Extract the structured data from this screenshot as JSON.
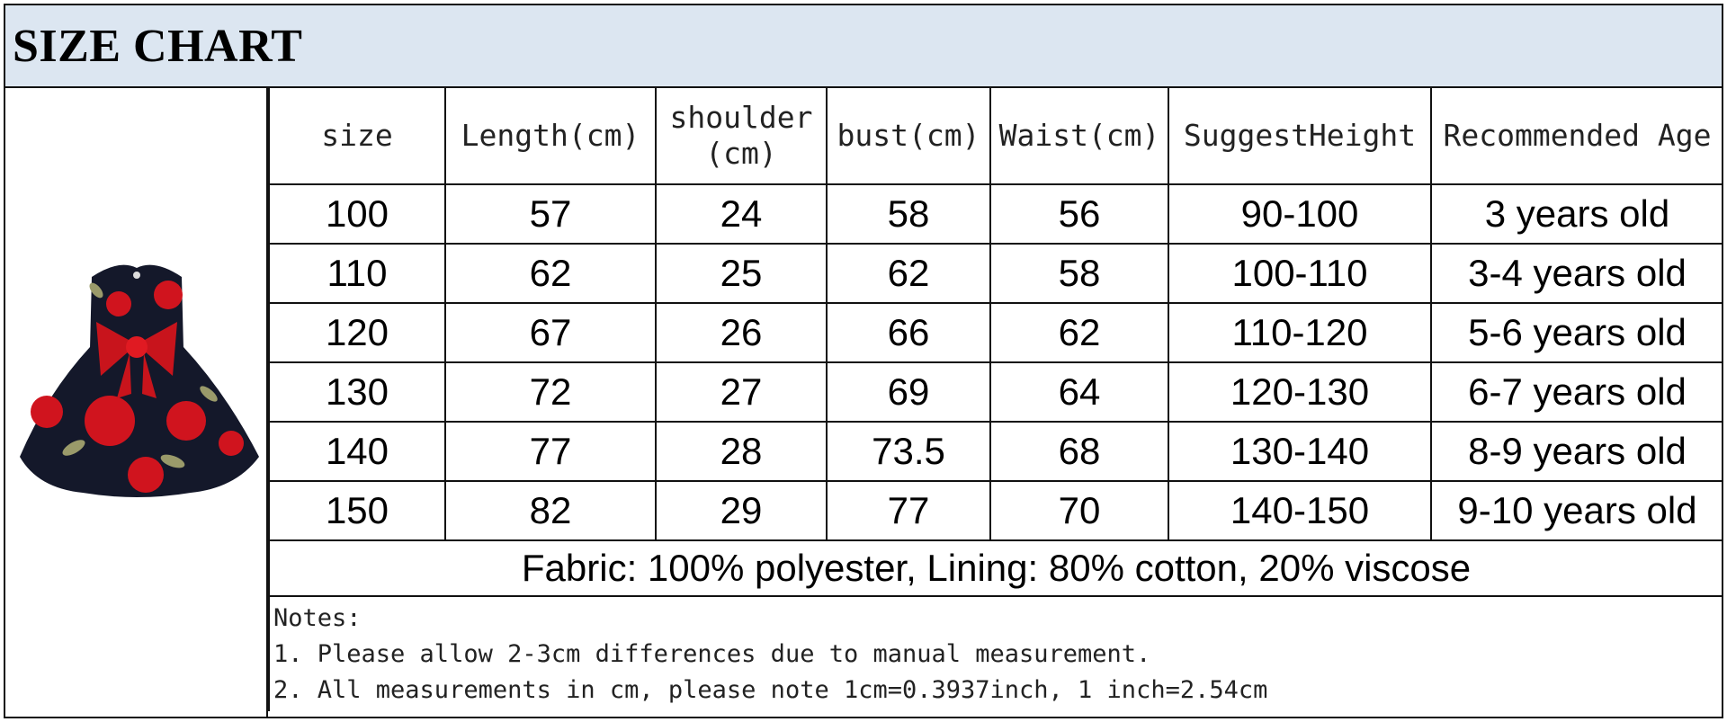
{
  "title": "SIZE CHART",
  "photo": {
    "description_icon": "dress-photo",
    "colors": {
      "dress": "#14182a",
      "rose": "#d0141e",
      "leaf": "#9a9a6a"
    }
  },
  "columns": [
    "size",
    "Length(cm)",
    "shoulder\n(cm)",
    "bust(cm)",
    "Waist(cm)",
    "SuggestHeight",
    "Recommended Age"
  ],
  "rows": [
    [
      "100",
      "57",
      "24",
      "58",
      "56",
      "90-100",
      "3 years old"
    ],
    [
      "110",
      "62",
      "25",
      "62",
      "58",
      "100-110",
      "3-4 years old"
    ],
    [
      "120",
      "67",
      "26",
      "66",
      "62",
      "110-120",
      "5-6 years old"
    ],
    [
      "130",
      "72",
      "27",
      "69",
      "64",
      "120-130",
      "6-7 years old"
    ],
    [
      "140",
      "77",
      "28",
      "73.5",
      "68",
      "130-140",
      "8-9 years old"
    ],
    [
      "150",
      "82",
      "29",
      "77",
      "70",
      "140-150",
      "9-10 years old"
    ]
  ],
  "fabric": "Fabric: 100% polyester,  Lining: 80% cotton, 20% viscose",
  "notes": [
    "Notes:",
    "1. Please allow 2-3cm differences due to manual measurement.",
    "2. All measurements in cm, please note 1cm=0.3937inch, 1 inch=2.54cm"
  ],
  "colors": {
    "title_bg": "#dce6f1",
    "border": "#111111"
  }
}
